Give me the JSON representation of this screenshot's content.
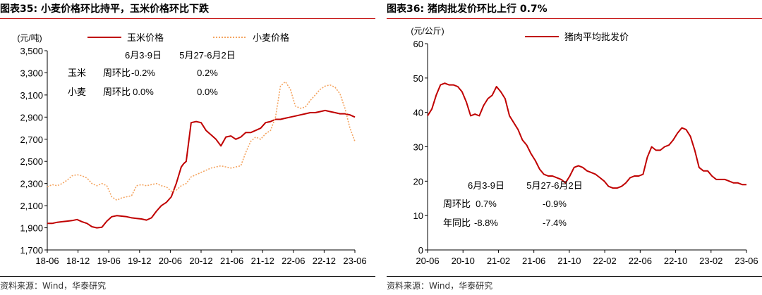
{
  "left": {
    "title": "图表35:  小麦价格环比持平，玉米价格环比下跌",
    "source": "资料来源：Wind，华泰研究",
    "title_bar_color": "#c00000",
    "chart_data": {
      "type": "line",
      "ylabel": "(元/吨)",
      "ylim": [
        1700,
        3500
      ],
      "yticks": [
        "1,700",
        "1,900",
        "2,100",
        "2,300",
        "2,500",
        "2,700",
        "2,900",
        "3,100",
        "3,300",
        "3,500"
      ],
      "xticks": [
        "18-06",
        "18-12",
        "19-06",
        "19-12",
        "20-06",
        "20-12",
        "21-06",
        "21-12",
        "22-06",
        "22-12",
        "23-06"
      ],
      "xrange_months": [
        0,
        62
      ],
      "series": [
        {
          "name": "玉米价格",
          "color": "#c00000",
          "style": "solid",
          "x": [
            0,
            1,
            2,
            3,
            4,
            5,
            6,
            7,
            8,
            9,
            10,
            11,
            12,
            13,
            14,
            15,
            16,
            17,
            18,
            19,
            20,
            21,
            22,
            23,
            24,
            25,
            26,
            27,
            27.5,
            28,
            29,
            30,
            31,
            32,
            33,
            34,
            35,
            36,
            37,
            38,
            39,
            40,
            41,
            42,
            43,
            44,
            45,
            46,
            47,
            48,
            49,
            50,
            51,
            52,
            53,
            54,
            55,
            56,
            57,
            58,
            59,
            60,
            61,
            62
          ],
          "y": [
            1940,
            1940,
            1950,
            1955,
            1960,
            1965,
            1975,
            1955,
            1940,
            1910,
            1900,
            1905,
            1960,
            2000,
            2010,
            2005,
            2000,
            1990,
            1985,
            1980,
            1970,
            1990,
            2050,
            2100,
            2130,
            2180,
            2300,
            2450,
            2480,
            2500,
            2850,
            2860,
            2850,
            2780,
            2740,
            2700,
            2640,
            2720,
            2730,
            2700,
            2720,
            2760,
            2760,
            2780,
            2800,
            2850,
            2860,
            2880,
            2880,
            2890,
            2900,
            2910,
            2920,
            2930,
            2940,
            2940,
            2950,
            2960,
            2950,
            2940,
            2930,
            2930,
            2920,
            2900
          ]
        },
        {
          "name": "小麦价格",
          "color": "#f4a460",
          "style": "dotted",
          "x": [
            0,
            1,
            2,
            3,
            4,
            5,
            6,
            7,
            8,
            9,
            10,
            11,
            12,
            13,
            14,
            15,
            16,
            17,
            18,
            19,
            20,
            21,
            22,
            23,
            24,
            25,
            26,
            27,
            28,
            29,
            30,
            31,
            32,
            33,
            34,
            35,
            36,
            37,
            38,
            39,
            40,
            41,
            42,
            43,
            44,
            45,
            46,
            47,
            48,
            49,
            50,
            51,
            52,
            53,
            54,
            55,
            56,
            57,
            58,
            59,
            60,
            61,
            62
          ],
          "y": [
            2270,
            2290,
            2280,
            2300,
            2330,
            2370,
            2380,
            2370,
            2350,
            2300,
            2280,
            2300,
            2280,
            2180,
            2150,
            2170,
            2180,
            2190,
            2280,
            2290,
            2280,
            2290,
            2300,
            2280,
            2270,
            2230,
            2240,
            2280,
            2300,
            2360,
            2380,
            2400,
            2420,
            2440,
            2450,
            2460,
            2450,
            2440,
            2450,
            2460,
            2580,
            2680,
            2720,
            2700,
            2750,
            2780,
            2900,
            3180,
            3220,
            3150,
            3000,
            2980,
            2990,
            3050,
            3100,
            3150,
            3180,
            3190,
            3170,
            3110,
            2980,
            2800,
            2680
          ]
        }
      ],
      "annotations": {
        "col1": "6月3-9日",
        "col2": "5月27-6月2日",
        "rows": [
          {
            "label": "玉米",
            "metric": "周环比",
            "v1": "-0.2%",
            "v2": "0.2%"
          },
          {
            "label": "小麦",
            "metric": "周环比",
            "v1": "0.0%",
            "v2": "0.0%"
          }
        ]
      },
      "legend_placement": "top"
    }
  },
  "right": {
    "title": "图表36:  猪肉批发价环比上行 0.7%",
    "source": "资料来源：Wind，华泰研究",
    "title_bar_color": "#c00000",
    "chart_data": {
      "type": "line",
      "ylabel": "(元/公斤)",
      "ylim": [
        0,
        60
      ],
      "yticks": [
        "0",
        "10",
        "20",
        "30",
        "40",
        "50",
        "60"
      ],
      "xticks": [
        "20-06",
        "20-10",
        "21-02",
        "21-06",
        "21-10",
        "22-02",
        "22-06",
        "22-10",
        "23-02",
        "23-06"
      ],
      "xrange_months": [
        0,
        37
      ],
      "series": [
        {
          "name": "猪肉平均批发价",
          "color": "#c00000",
          "style": "solid",
          "x": [
            0,
            0.5,
            1,
            1.5,
            2,
            2.5,
            3,
            3.5,
            4,
            4.5,
            5,
            5.5,
            6,
            6.5,
            7,
            7.5,
            8,
            8.5,
            9,
            9.5,
            10,
            10.5,
            11,
            11.5,
            12,
            12.5,
            13,
            13.5,
            14,
            14.5,
            15,
            15.5,
            16,
            16.5,
            17,
            17.5,
            18,
            18.5,
            19,
            19.5,
            20,
            20.5,
            21,
            21.5,
            22,
            22.5,
            23,
            23.5,
            24,
            24.5,
            25,
            25.5,
            26,
            26.5,
            27,
            27.5,
            28,
            28.5,
            29,
            29.5,
            30,
            30.5,
            31,
            31.5,
            32,
            32.5,
            33,
            33.5,
            34,
            34.5,
            35,
            35.5,
            36,
            36.5,
            37
          ],
          "y": [
            39,
            41,
            45,
            48,
            48.5,
            48,
            48,
            47.5,
            46,
            43,
            39,
            39.5,
            39,
            42,
            44,
            45,
            47.5,
            46,
            44,
            39,
            37,
            35,
            32,
            30.5,
            28,
            26,
            23.5,
            22,
            21.5,
            21.5,
            21,
            20.5,
            19.5,
            21.5,
            24,
            24.5,
            24,
            23,
            22.5,
            22,
            21,
            20,
            18.5,
            18,
            18,
            18.5,
            19.5,
            21,
            21.5,
            21.5,
            22,
            27,
            30,
            29,
            29,
            30,
            30.5,
            32,
            34,
            35.5,
            35,
            33,
            29,
            24,
            23,
            23,
            21.5,
            20.5,
            20.5,
            20.5,
            20,
            19.5,
            19.5,
            19,
            19
          ]
        }
      ],
      "annotations": {
        "col1": "6月3-9日",
        "col2": "5月27-6月2日",
        "rows": [
          {
            "metric": "周环比",
            "v1": "0.7%",
            "v2": "-0.9%"
          },
          {
            "metric": "年同比",
            "v1": "-8.8%",
            "v2": "-7.4%"
          }
        ]
      },
      "legend_placement": "top"
    }
  }
}
